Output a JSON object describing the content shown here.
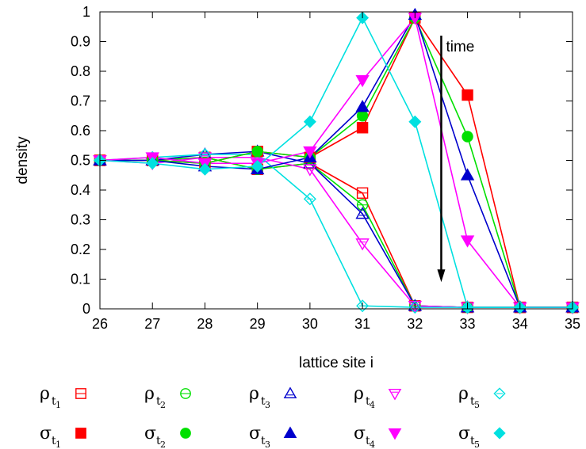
{
  "chart_data": {
    "type": "line",
    "title": "",
    "xlabel": "lattice site i",
    "ylabel": "density",
    "xlim": [
      26,
      35
    ],
    "ylim": [
      0,
      1
    ],
    "x": [
      26,
      27,
      28,
      29,
      30,
      31,
      32,
      33,
      34,
      35
    ],
    "xticks": [
      "26",
      "27",
      "28",
      "29",
      "30",
      "31",
      "32",
      "33",
      "34",
      "35"
    ],
    "yticks": [
      "0",
      "0.1",
      "0.2",
      "0.3",
      "0.4",
      "0.5",
      "0.6",
      "0.7",
      "0.8",
      "0.9",
      "1"
    ],
    "grid": false,
    "legend_position": "bottom",
    "annotation": {
      "text": "time",
      "x": 32.5,
      "y_from": 0.92,
      "y_to": 0.09
    },
    "series": [
      {
        "base": "ρ",
        "sub": "t",
        "subsub": "1",
        "color": "#ff0000",
        "marker": "square-open",
        "values": [
          0.5,
          0.5,
          0.51,
          0.47,
          0.49,
          0.39,
          0.01,
          0.005,
          0.005,
          0.005
        ]
      },
      {
        "base": "ρ",
        "sub": "t",
        "subsub": "2",
        "color": "#00e000",
        "marker": "circle-open",
        "values": [
          0.5,
          0.5,
          0.51,
          0.47,
          0.49,
          0.35,
          0.01,
          0.005,
          0.005,
          0.005
        ]
      },
      {
        "base": "ρ",
        "sub": "t",
        "subsub": "3",
        "color": "#0000cc",
        "marker": "triangle-up-open",
        "values": [
          0.5,
          0.5,
          0.52,
          0.53,
          0.49,
          0.32,
          0.01,
          0.005,
          0.005,
          0.005
        ]
      },
      {
        "base": "ρ",
        "sub": "t",
        "subsub": "4",
        "color": "#ff00ff",
        "marker": "triangle-down-open",
        "values": [
          0.5,
          0.49,
          0.51,
          0.51,
          0.47,
          0.22,
          0.01,
          0.005,
          0.005,
          0.005
        ]
      },
      {
        "base": "ρ",
        "sub": "t",
        "subsub": "5",
        "color": "#00e0e0",
        "marker": "diamond-open",
        "values": [
          0.5,
          0.51,
          0.52,
          0.52,
          0.37,
          0.01,
          0.005,
          0.005,
          0.005,
          0.005
        ]
      },
      {
        "base": "σ",
        "sub": "t",
        "subsub": "1",
        "color": "#ff0000",
        "marker": "square",
        "values": [
          0.5,
          0.5,
          0.49,
          0.53,
          0.51,
          0.61,
          0.98,
          0.72,
          0.005,
          0.005
        ]
      },
      {
        "base": "σ",
        "sub": "t",
        "subsub": "2",
        "color": "#00e000",
        "marker": "circle",
        "values": [
          0.5,
          0.5,
          0.49,
          0.53,
          0.51,
          0.65,
          0.98,
          0.58,
          0.005,
          0.005
        ]
      },
      {
        "base": "σ",
        "sub": "t",
        "subsub": "3",
        "color": "#0000cc",
        "marker": "triangle-up",
        "values": [
          0.5,
          0.5,
          0.48,
          0.47,
          0.51,
          0.68,
          0.99,
          0.45,
          0.005,
          0.005
        ]
      },
      {
        "base": "σ",
        "sub": "t",
        "subsub": "4",
        "color": "#ff00ff",
        "marker": "triangle-down",
        "values": [
          0.5,
          0.51,
          0.49,
          0.49,
          0.53,
          0.77,
          0.98,
          0.23,
          0.005,
          0.005
        ]
      },
      {
        "base": "σ",
        "sub": "t",
        "subsub": "5",
        "color": "#00e0e0",
        "marker": "diamond",
        "values": [
          0.5,
          0.49,
          0.47,
          0.48,
          0.63,
          0.98,
          0.63,
          0.005,
          0.005,
          0.005
        ]
      }
    ]
  }
}
